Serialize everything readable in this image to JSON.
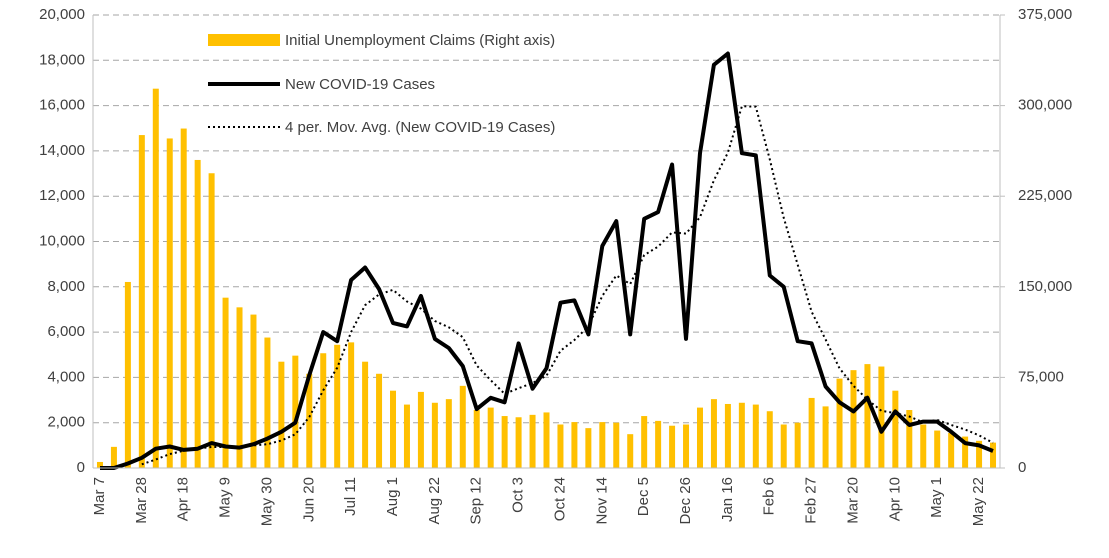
{
  "chart_data": {
    "type": "combo",
    "categories": [
      "Mar 7",
      null,
      null,
      "Mar 28",
      null,
      null,
      "Apr 18",
      null,
      null,
      "May 9",
      null,
      null,
      "May 30",
      null,
      null,
      "Jun 20",
      null,
      null,
      "Jul 11",
      null,
      null,
      "Aug 1",
      null,
      null,
      "Aug 22",
      null,
      null,
      "Sep 12",
      null,
      null,
      "Oct 3",
      null,
      null,
      "Oct 24",
      null,
      null,
      "Nov 14",
      null,
      null,
      "Dec 5",
      null,
      null,
      "Dec 26",
      null,
      null,
      "Jan 16",
      null,
      null,
      "Feb 6",
      null,
      null,
      "Feb 27",
      null,
      null,
      "Mar 20",
      null,
      null,
      "Apr 10",
      null,
      null,
      "May 1",
      null,
      null,
      "May 22",
      null
    ],
    "series": [
      {
        "name": "Initial Unemployment Claims (Right axis)",
        "type": "bar",
        "axis": "y2",
        "color": "#ffc000",
        "values": [
          5000,
          17500,
          154000,
          275600,
          314000,
          272800,
          281000,
          255000,
          244000,
          141000,
          133000,
          127000,
          108000,
          88000,
          93000,
          78000,
          95000,
          102000,
          104000,
          88000,
          78000,
          64000,
          52500,
          63000,
          54000,
          57000,
          68000,
          48000,
          50000,
          43000,
          42000,
          44000,
          46000,
          36000,
          38000,
          33000,
          38000,
          37500,
          28000,
          43000,
          39000,
          35000,
          36000,
          50000,
          57000,
          53000,
          54000,
          52500,
          47000,
          36000,
          37500,
          58000,
          51000,
          74000,
          81000,
          86000,
          84000,
          64000,
          48000,
          36000,
          31000,
          29000,
          26000,
          22500,
          21000
        ]
      },
      {
        "name": "New COVID-19 Cases",
        "type": "line",
        "color": "#000000",
        "values": [
          0,
          0,
          200,
          450,
          850,
          950,
          800,
          850,
          1100,
          950,
          900,
          1050,
          1300,
          1600,
          2000,
          4100,
          6000,
          5600,
          8300,
          8850,
          7900,
          6400,
          6250,
          7600,
          5700,
          5300,
          4500,
          2600,
          3100,
          2900,
          5500,
          3500,
          4400,
          7300,
          7400,
          5900,
          9800,
          10900,
          5900,
          11000,
          11300,
          13400,
          5700,
          13900,
          17800,
          18300,
          13900,
          13800,
          8500,
          8000,
          5600,
          5500,
          3600,
          2900,
          2500,
          3100,
          1600,
          2500,
          1900,
          2050,
          2050,
          1600,
          1100,
          1000,
          750
        ]
      },
      {
        "name": "4 per. Mov. Avg. (New COVID-19 Cases)",
        "type": "line",
        "dash": "dotted",
        "color": "#000000",
        "values": [
          null,
          null,
          null,
          163,
          375,
          613,
          763,
          863,
          925,
          925,
          950,
          1000,
          1050,
          1213,
          1488,
          2250,
          3425,
          4425,
          6000,
          7188,
          7663,
          7863,
          7350,
          7038,
          6488,
          6213,
          5775,
          4525,
          3875,
          3275,
          3525,
          3750,
          4075,
          5175,
          5650,
          6250,
          7600,
          8500,
          8125,
          9400,
          9775,
          10400,
          10350,
          11075,
          12700,
          13925,
          15975,
          15950,
          13625,
          11050,
          8975,
          6900,
          5675,
          4400,
          3625,
          3025,
          2525,
          2425,
          2275,
          2013,
          2125,
          1900,
          1700,
          1438,
          1113
        ]
      }
    ],
    "ylim": [
      0,
      20000
    ],
    "yticks": [
      0,
      {
        "value": 2000,
        "label": "2,000"
      },
      {
        "value": 4000,
        "label": "4,000"
      },
      {
        "value": 6000,
        "label": "6,000"
      },
      {
        "value": 8000,
        "label": "8,000"
      },
      {
        "value": 10000,
        "label": "10,000"
      },
      {
        "value": 12000,
        "label": "12,000"
      },
      {
        "value": 14000,
        "label": "14,000"
      },
      {
        "value": 16000,
        "label": "16,000"
      },
      {
        "value": 18000,
        "label": "18,000"
      },
      {
        "value": 20000,
        "label": "20,000"
      }
    ],
    "y2lim": [
      0,
      375000
    ],
    "y2ticks": [
      0,
      {
        "value": 75000,
        "label": "75,000"
      },
      {
        "value": 150000,
        "label": "150,000"
      },
      {
        "value": 225000,
        "label": "225,000"
      },
      {
        "value": 300000,
        "label": "300,000"
      },
      {
        "value": 375000,
        "label": "375,000"
      }
    ],
    "grid": true,
    "legend": "top-left"
  }
}
